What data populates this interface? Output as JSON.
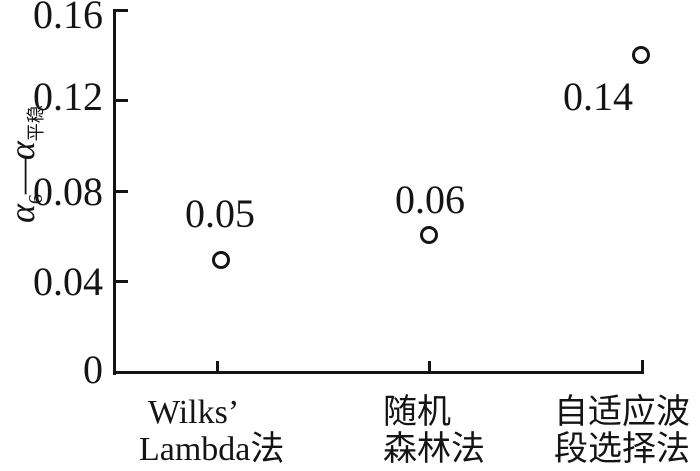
{
  "figure": {
    "y_axis": {
      "ticks": [
        "0.16",
        "0.12",
        "0.08",
        "0.04",
        "0"
      ],
      "label": {
        "alpha1": "α",
        "sub1": "6",
        "dash": "—",
        "alpha2": "α",
        "sub2": "平稳"
      }
    },
    "x_axis": {
      "categories": [
        {
          "line1": "Wilks’",
          "line2": "Lambda法"
        },
        {
          "line1": "随机",
          "line2": "森林法"
        },
        {
          "line1": "自适应波",
          "line2": "段选择法"
        }
      ]
    },
    "points": [
      {
        "label": "0.05"
      },
      {
        "label": "0.06"
      },
      {
        "label": "0.14"
      }
    ]
  },
  "chart_data": {
    "type": "scatter",
    "categories": [
      "Wilks’ Lambda法",
      "随机森林法",
      "自适应波段选择法"
    ],
    "values": [
      0.05,
      0.06,
      0.14
    ],
    "point_labels": [
      "0.05",
      "0.06",
      "0.14"
    ],
    "title": "",
    "xlabel": "",
    "ylabel": "α6−α平稳",
    "ylim": [
      0,
      0.16
    ],
    "yticks": [
      0,
      0.04,
      0.08,
      0.12,
      0.16
    ],
    "marker": "open-circle",
    "marker_color": "#141414",
    "grid": false,
    "legend": "none"
  }
}
